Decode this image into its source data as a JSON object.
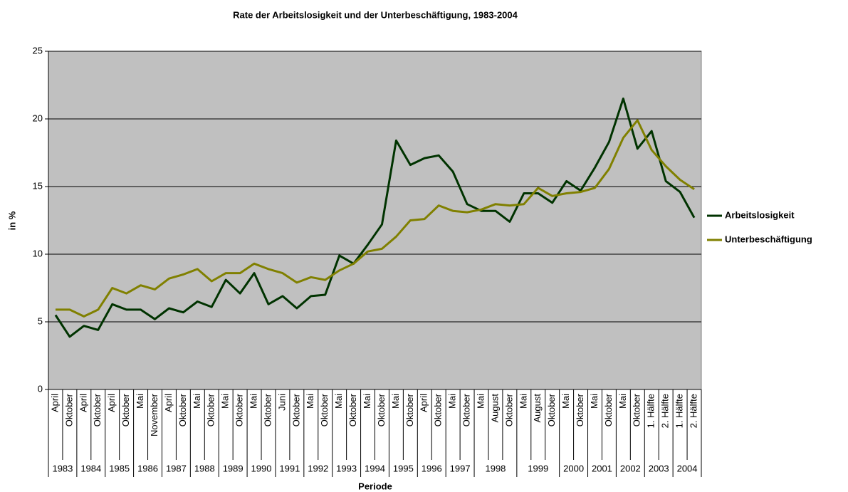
{
  "chart_data": {
    "type": "line",
    "title": "Rate der Arbeitslosigkeit und der Unterbeschäftigung, 1983-2004",
    "x_label": "Periode",
    "y_label": "in %",
    "category_groups": [
      {
        "label": "1983",
        "categories": [
          "April",
          "Oktober"
        ]
      },
      {
        "label": "1984",
        "categories": [
          "April",
          "Oktober"
        ]
      },
      {
        "label": "1985",
        "categories": [
          "April",
          "Oktober"
        ]
      },
      {
        "label": "1986",
        "categories": [
          "Mai",
          "November"
        ]
      },
      {
        "label": "1987",
        "categories": [
          "April",
          "Oktober"
        ]
      },
      {
        "label": "1988",
        "categories": [
          "Mai",
          "Oktober"
        ]
      },
      {
        "label": "1989",
        "categories": [
          "Mai",
          "Oktober"
        ]
      },
      {
        "label": "1990",
        "categories": [
          "Mai",
          "Oktober"
        ]
      },
      {
        "label": "1991",
        "categories": [
          "Juni",
          "Oktober"
        ]
      },
      {
        "label": "1992",
        "categories": [
          "Mai",
          "Oktober"
        ]
      },
      {
        "label": "1993",
        "categories": [
          "Mai",
          "Oktober"
        ]
      },
      {
        "label": "1994",
        "categories": [
          "Mai",
          "Oktober"
        ]
      },
      {
        "label": "1995",
        "categories": [
          "Mai",
          "Oktober"
        ]
      },
      {
        "label": "1996",
        "categories": [
          "April",
          "Oktober"
        ]
      },
      {
        "label": "1997",
        "categories": [
          "Mai",
          "Oktober"
        ]
      },
      {
        "label": "1998",
        "categories": [
          "Mai",
          "August",
          "Oktober"
        ]
      },
      {
        "label": "1999",
        "categories": [
          "Mai",
          "August",
          "Oktober"
        ]
      },
      {
        "label": "2000",
        "categories": [
          "Mai",
          "Oktober"
        ]
      },
      {
        "label": "2001",
        "categories": [
          "Mai",
          "Oktober"
        ]
      },
      {
        "label": "2002",
        "categories": [
          "Mai",
          "Oktober"
        ]
      },
      {
        "label": "2003",
        "categories": [
          "1. Hälfte",
          "2. Hälfte"
        ]
      },
      {
        "label": "2004",
        "categories": [
          "1. Hälfte",
          "2. Hälfte"
        ]
      }
    ],
    "series": [
      {
        "name": "Arbeitslosigkeit",
        "color": "#003300",
        "values": [
          5.5,
          3.9,
          4.7,
          4.4,
          6.3,
          5.9,
          5.9,
          5.2,
          6.0,
          5.7,
          6.5,
          6.1,
          8.1,
          7.1,
          8.6,
          6.3,
          6.9,
          6.0,
          6.9,
          7.0,
          9.9,
          9.3,
          10.7,
          12.2,
          18.4,
          16.6,
          17.1,
          17.3,
          16.1,
          13.7,
          13.2,
          13.2,
          12.4,
          14.5,
          14.5,
          13.8,
          15.4,
          14.7,
          16.4,
          18.3,
          21.5,
          17.8,
          19.1,
          15.4,
          14.6,
          12.7
        ]
      },
      {
        "name": "Unterbeschäftigung",
        "color": "#808000",
        "values": [
          5.9,
          5.9,
          5.4,
          5.9,
          7.5,
          7.1,
          7.7,
          7.4,
          8.2,
          8.5,
          8.9,
          8.0,
          8.6,
          8.6,
          9.3,
          8.9,
          8.6,
          7.9,
          8.3,
          8.1,
          8.8,
          9.3,
          10.2,
          10.4,
          11.3,
          12.5,
          12.6,
          13.6,
          13.2,
          13.1,
          13.3,
          13.7,
          13.6,
          13.7,
          14.9,
          14.3,
          14.5,
          14.6,
          14.9,
          16.3,
          18.6,
          19.9,
          17.7,
          16.5,
          15.5,
          14.8
        ]
      }
    ],
    "ylim": [
      0,
      25
    ],
    "yticks": [
      0,
      5,
      10,
      15,
      20,
      25
    ],
    "grid": true,
    "plot_background": "#c0c0c0",
    "legend": "right"
  }
}
